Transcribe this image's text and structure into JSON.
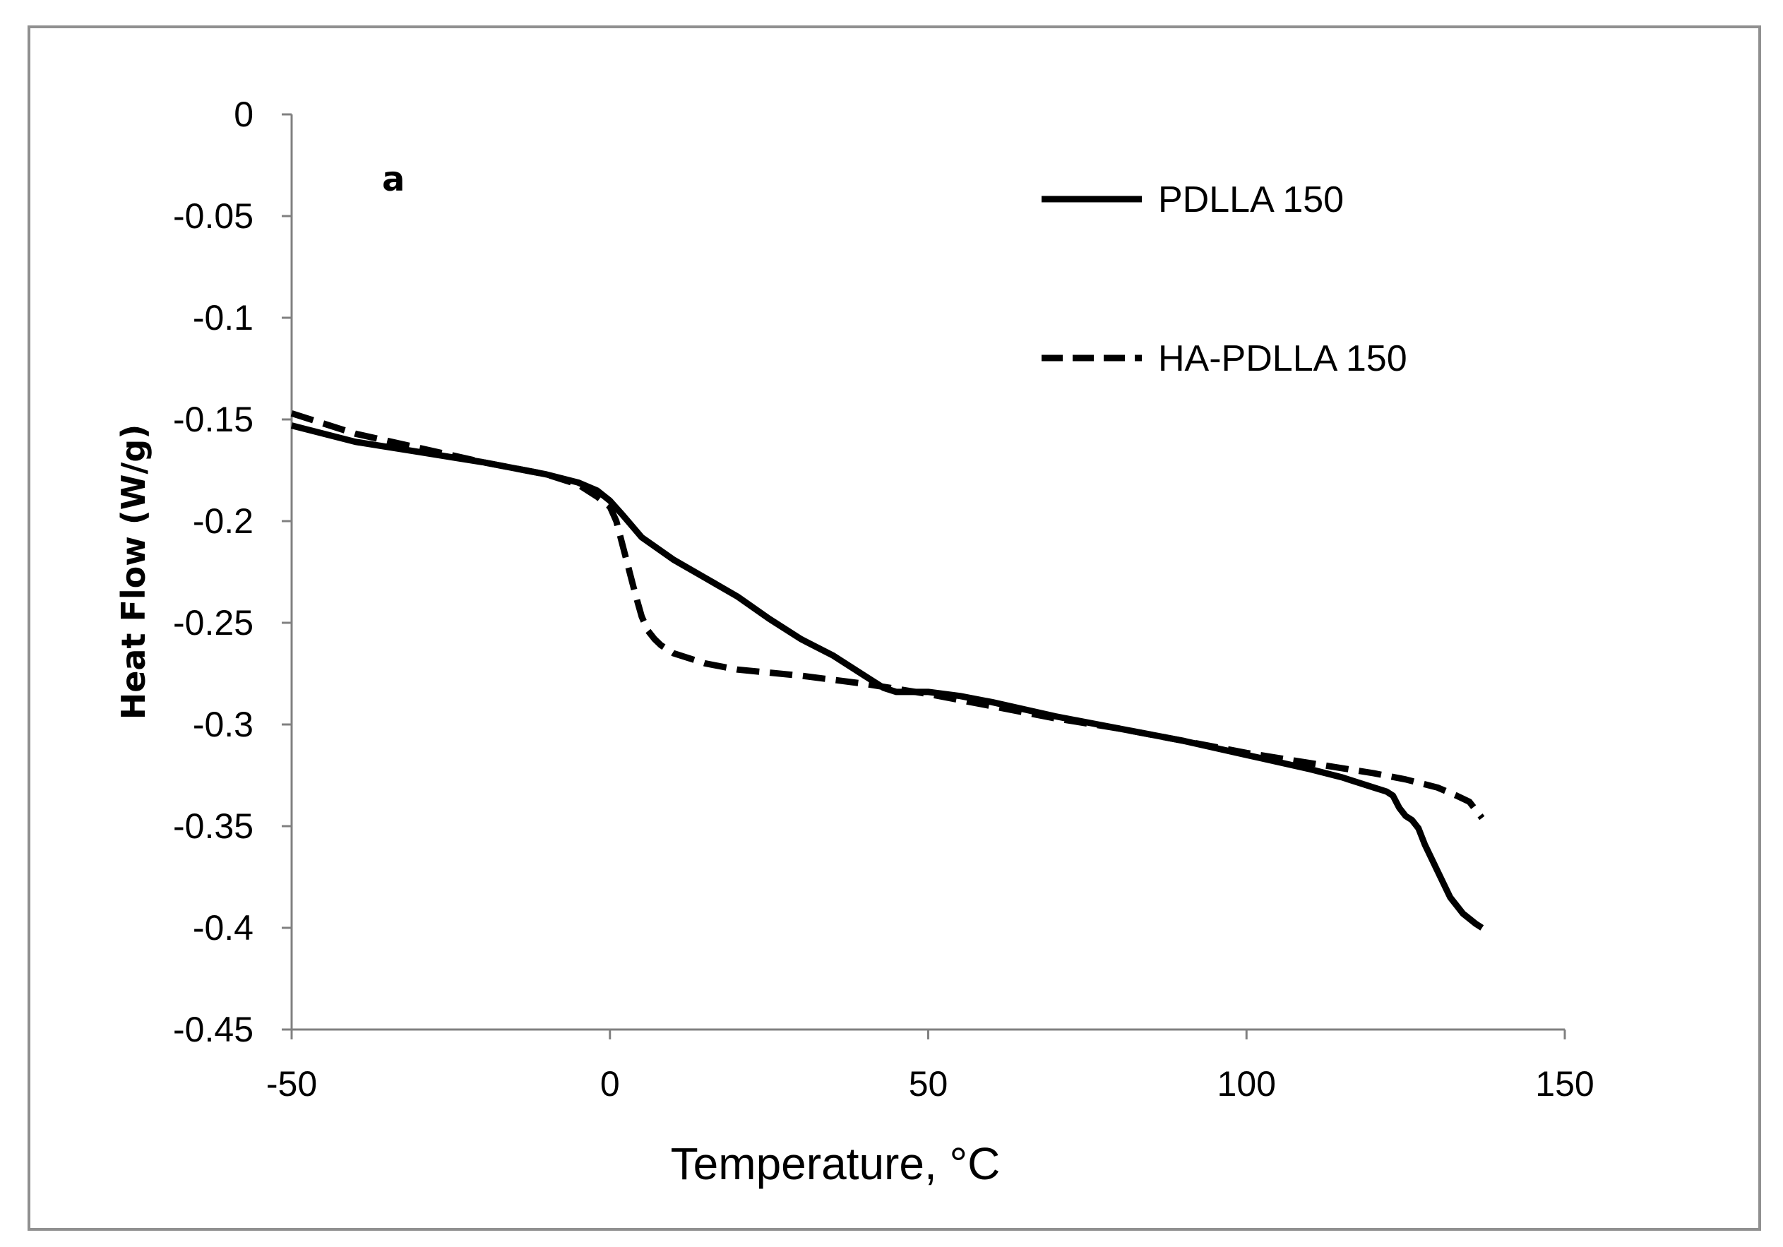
{
  "chart_data": {
    "type": "line",
    "title": "",
    "panel_label": "a",
    "xlabel": "Temperature, °C",
    "ylabel": "Heat Flow (W/g)",
    "xlim": [
      -50,
      150
    ],
    "ylim": [
      -0.45,
      0
    ],
    "x_ticks": [
      -50,
      0,
      50,
      100,
      150
    ],
    "x_tick_labels": [
      "-50",
      "0",
      "50",
      "100",
      "150"
    ],
    "y_ticks": [
      0,
      -0.05,
      -0.1,
      -0.15,
      -0.2,
      -0.25,
      -0.3,
      -0.35,
      -0.4,
      -0.45
    ],
    "y_tick_labels": [
      "0",
      "-0.05",
      "-0.1",
      "-0.15",
      "-0.2",
      "-0.25",
      "-0.3",
      "-0.35",
      "-0.4",
      "-0.45"
    ],
    "grid": false,
    "legend_position": "top-right",
    "series": [
      {
        "name": "PDLLA 150",
        "style": "solid",
        "color": "#000000",
        "x": [
          -50,
          -40,
          -30,
          -20,
          -10,
          -5,
          -2,
          0,
          2,
          5,
          10,
          15,
          20,
          25,
          30,
          35,
          40,
          43,
          45,
          50,
          55,
          60,
          70,
          80,
          90,
          100,
          110,
          115,
          120,
          122,
          123,
          124,
          125,
          126,
          127,
          128,
          130,
          132,
          134,
          136,
          137
        ],
        "values": [
          -0.153,
          -0.161,
          -0.166,
          -0.171,
          -0.177,
          -0.181,
          -0.185,
          -0.19,
          -0.197,
          -0.208,
          -0.219,
          -0.228,
          -0.237,
          -0.248,
          -0.258,
          -0.266,
          -0.276,
          -0.282,
          -0.284,
          -0.284,
          -0.286,
          -0.289,
          -0.296,
          -0.302,
          -0.308,
          -0.315,
          -0.322,
          -0.326,
          -0.331,
          -0.333,
          -0.335,
          -0.341,
          -0.345,
          -0.347,
          -0.351,
          -0.359,
          -0.372,
          -0.385,
          -0.393,
          -0.398,
          -0.4
        ]
      },
      {
        "name": "HA-PDLLA 150",
        "style": "dashed",
        "color": "#000000",
        "x": [
          -50,
          -40,
          -30,
          -20,
          -10,
          -5,
          -2,
          0,
          1,
          2,
          3,
          4,
          5,
          6,
          7,
          8,
          10,
          15,
          20,
          30,
          40,
          50,
          60,
          70,
          80,
          90,
          100,
          110,
          120,
          125,
          130,
          133,
          135,
          136,
          137
        ],
        "values": [
          -0.147,
          -0.157,
          -0.164,
          -0.171,
          -0.177,
          -0.182,
          -0.188,
          -0.193,
          -0.2,
          -0.212,
          -0.224,
          -0.236,
          -0.247,
          -0.254,
          -0.258,
          -0.261,
          -0.265,
          -0.27,
          -0.273,
          -0.276,
          -0.28,
          -0.285,
          -0.291,
          -0.297,
          -0.302,
          -0.308,
          -0.314,
          -0.319,
          -0.324,
          -0.327,
          -0.331,
          -0.335,
          -0.338,
          -0.342,
          -0.346
        ]
      }
    ]
  },
  "colors": {
    "background": "#ffffff",
    "frame": "#909090",
    "axis": "#808080",
    "series": "#000000"
  }
}
